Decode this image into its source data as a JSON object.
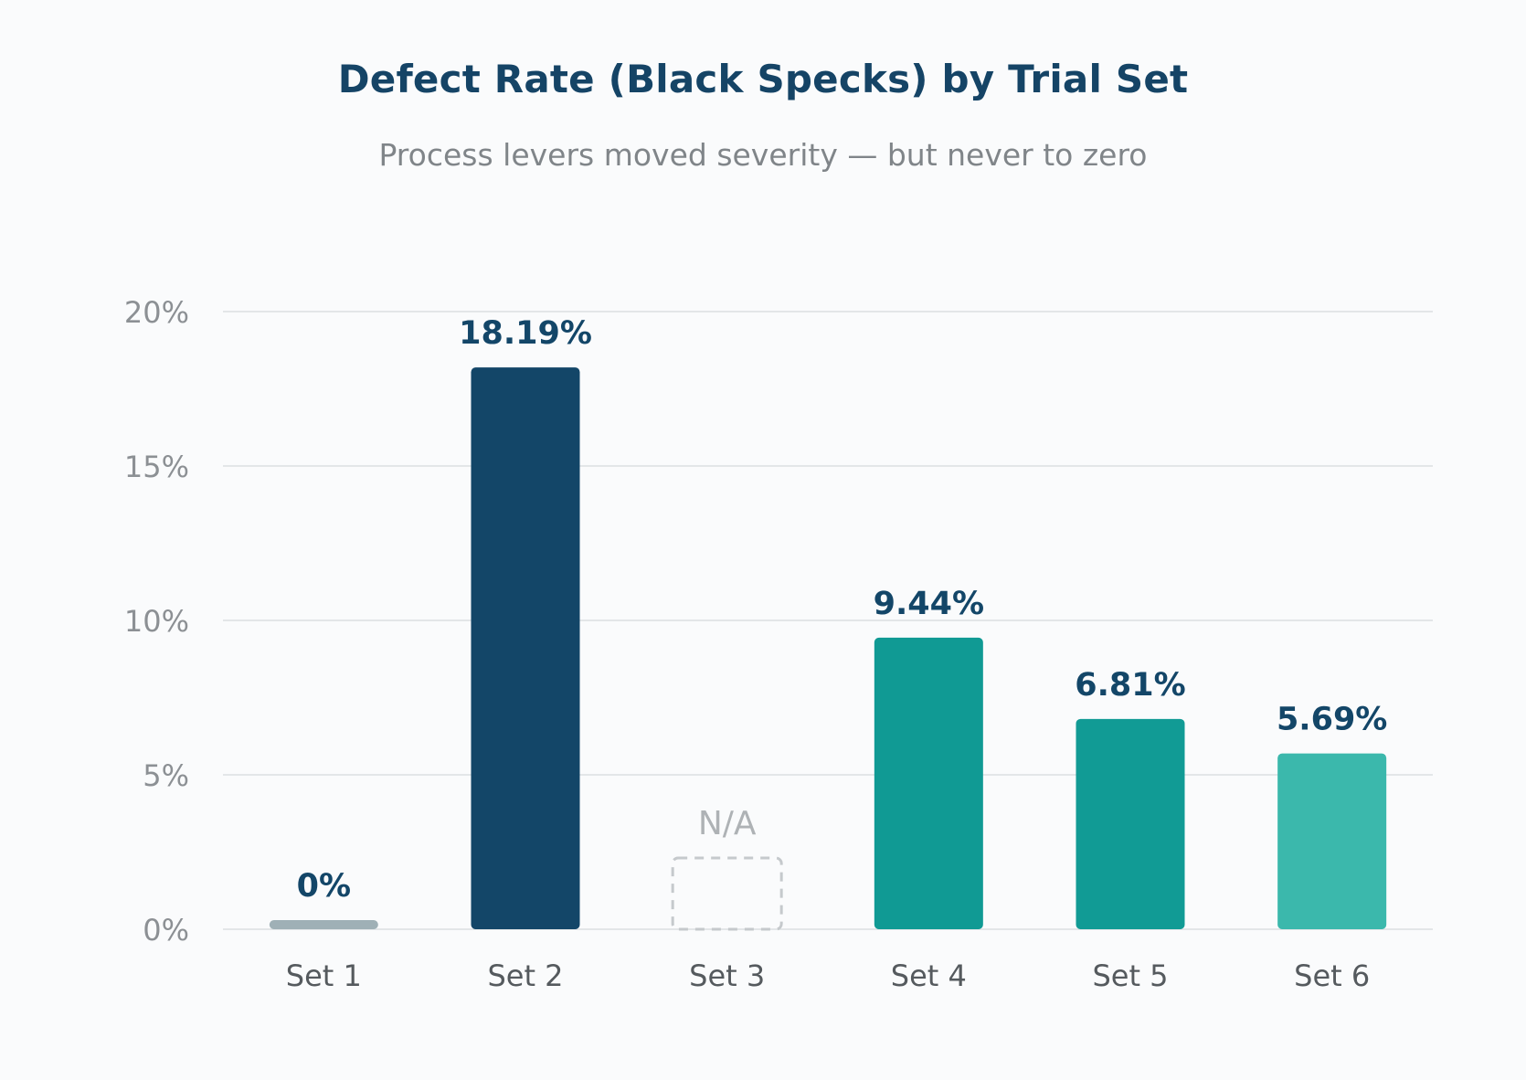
{
  "chart_data": {
    "type": "bar",
    "title": "Defect Rate (Black Specks) by Trial Set",
    "subtitle": "Process levers moved severity — but never to zero",
    "xlabel": "",
    "ylabel": "",
    "ylim": [
      0,
      20
    ],
    "yticks": [
      0,
      5,
      10,
      15,
      20
    ],
    "ytick_labels": [
      "0%",
      "5%",
      "10%",
      "15%",
      "20%"
    ],
    "grid": true,
    "legend": "none",
    "categories": [
      "Set 1",
      "Set 2",
      "Set 3",
      "Set 4",
      "Set 5",
      "Set 6"
    ],
    "values": [
      0,
      18.19,
      null,
      9.44,
      6.81,
      5.69
    ],
    "data_labels": [
      "0%",
      "18.19%",
      "N/A",
      "9.44%",
      "6.81%",
      "5.69%"
    ],
    "colors": [
      "#9fb0b6",
      "#134668",
      "#c5c9cc",
      "#109a94",
      "#119b95",
      "#3bb8ac"
    ]
  },
  "colors": {
    "title": "#154466",
    "subtitle": "#808589",
    "label": "#134668",
    "na_label": "#aeb2b5",
    "tick": "#8c9094",
    "category": "#555a5e",
    "grid": "#e3e6e8"
  }
}
